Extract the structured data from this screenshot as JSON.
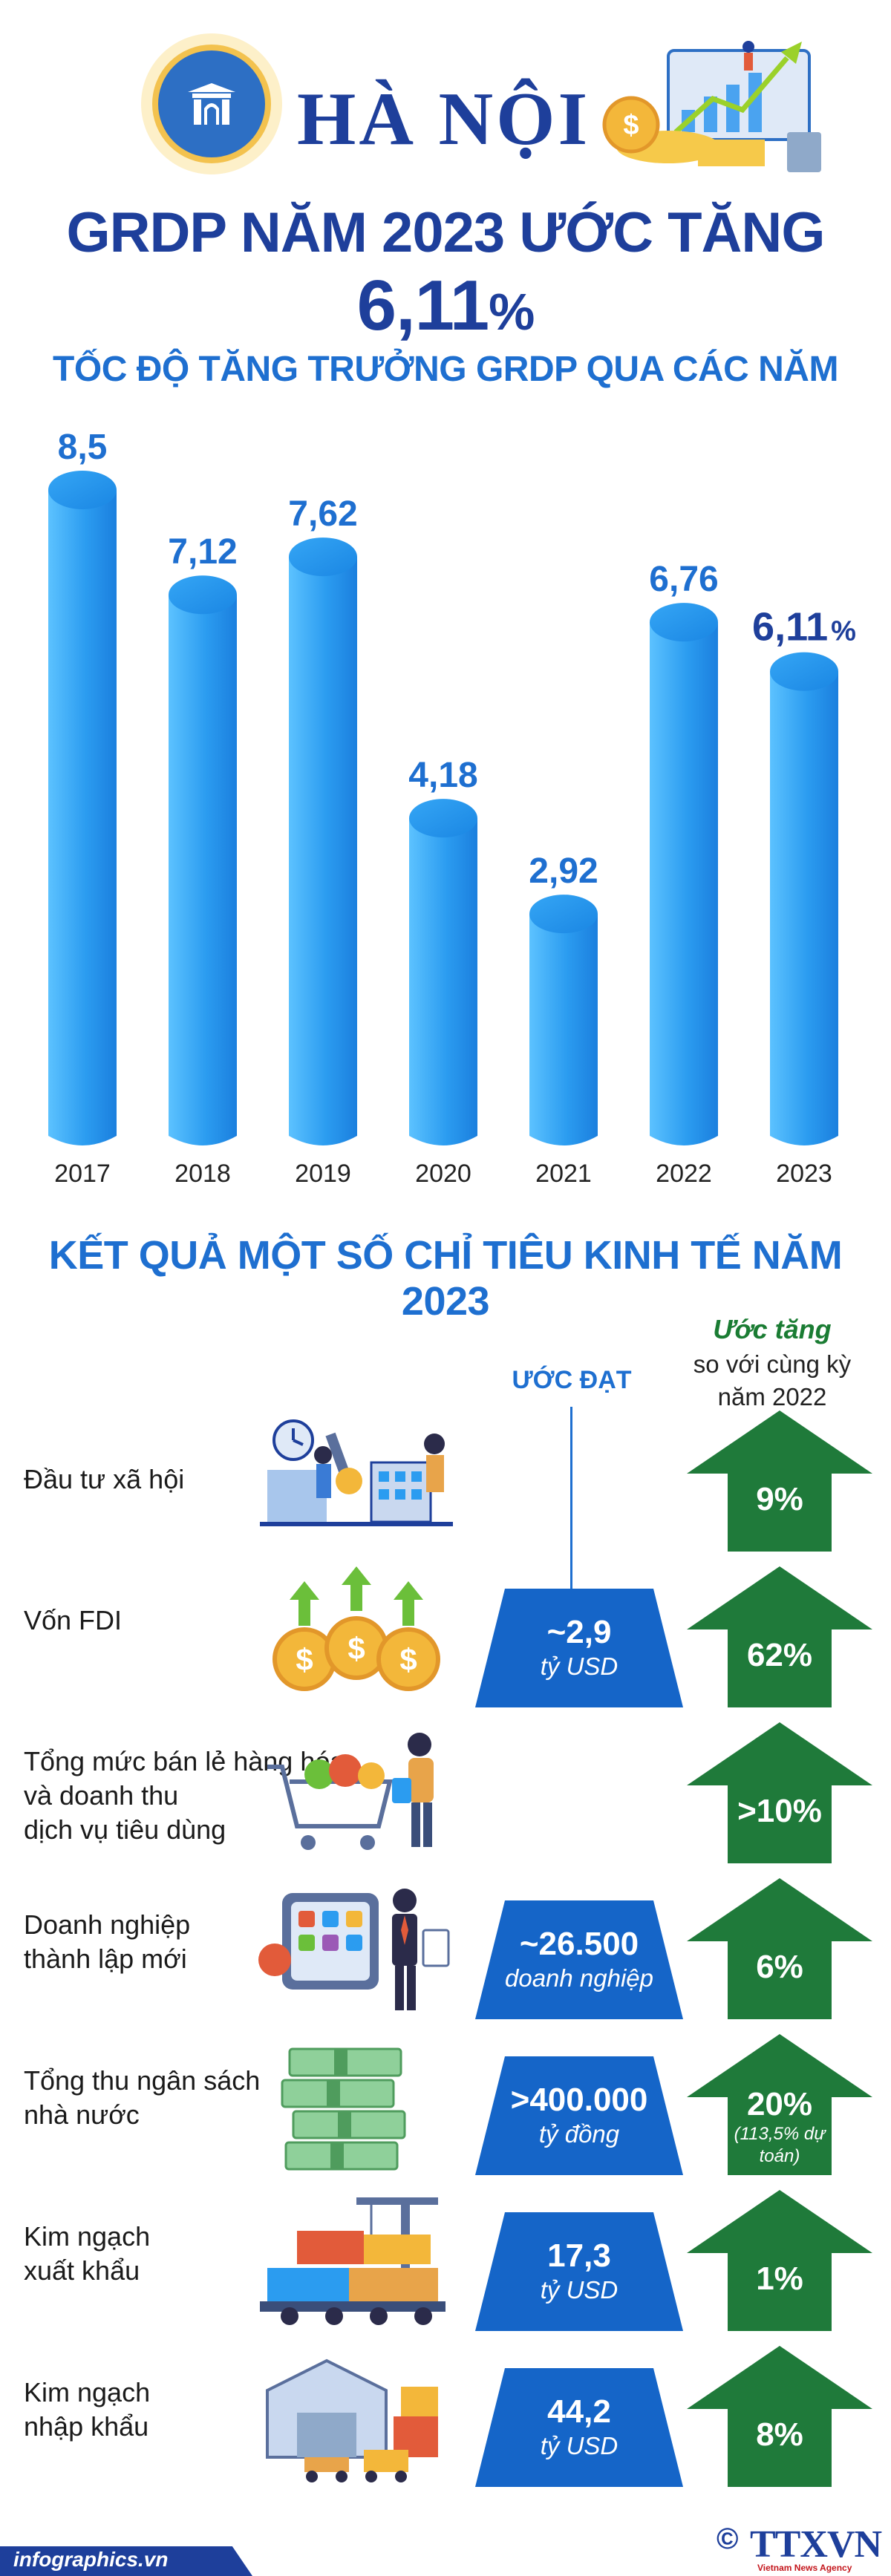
{
  "header": {
    "city": "HÀ NỘI",
    "headline_prefix": "GRDP NĂM 2023 ƯỚC TĂNG ",
    "headline_value": "6,11",
    "headline_unit": "%"
  },
  "chart_title": "TỐC ĐỘ TĂNG TRƯỞNG GRDP QUA CÁC NĂM",
  "chart_data": {
    "type": "bar",
    "title": "TỐC ĐỘ TĂNG TRƯỞNG GRDP QUA CÁC NĂM",
    "categories": [
      "2017",
      "2018",
      "2019",
      "2020",
      "2021",
      "2022",
      "2023"
    ],
    "values": [
      8.5,
      7.12,
      7.62,
      4.18,
      2.92,
      6.76,
      6.11
    ],
    "value_labels": [
      "8,5",
      "7,12",
      "7,62",
      "4,18",
      "2,92",
      "6,76",
      "6,11"
    ],
    "last_unit": "%",
    "xlabel": "",
    "ylabel": "",
    "grid": false,
    "bar_color": "#2b9cf0"
  },
  "section_title": "KẾT QUẢ MỘT SỐ CHỈ TIÊU KINH TẾ NĂM 2023",
  "columns": {
    "estimate": "ƯỚC ĐẠT",
    "growth_title": "Ước tăng",
    "growth_sub1": "so với cùng kỳ",
    "growth_sub2": "năm 2022"
  },
  "rows": [
    {
      "label1": "Đầu tư xã hội",
      "label2": "",
      "label3": "",
      "icon": "office-workers-icon",
      "est_value": "",
      "est_unit": "",
      "growth": "9%",
      "note": ""
    },
    {
      "label1": "Vốn FDI",
      "label2": "",
      "label3": "",
      "icon": "dollar-coins-icon",
      "est_value": "~2,9",
      "est_unit": "tỷ USD",
      "growth": "62%",
      "note": ""
    },
    {
      "label1": "Tổng mức bán lẻ hàng hóa",
      "label2": "và doanh thu",
      "label3": "dịch vụ tiêu dùng",
      "icon": "shopping-cart-icon",
      "est_value": "",
      "est_unit": "",
      "growth": ">10%",
      "note": ""
    },
    {
      "label1": "Doanh nghiệp",
      "label2": "thành lập mới",
      "label3": "",
      "icon": "businessman-icon",
      "est_value": "~26.500",
      "est_unit": "doanh nghiệp",
      "growth": "6%",
      "note": ""
    },
    {
      "label1": "Tổng thu ngân sách",
      "label2": "nhà nước",
      "label3": "",
      "icon": "cash-stack-icon",
      "est_value": ">400.000",
      "est_unit": "tỷ đồng",
      "growth": "20%",
      "note": "(113,5% dự toán)"
    },
    {
      "label1": "Kim ngạch",
      "label2": "xuất khẩu",
      "label3": "",
      "icon": "export-trucks-icon",
      "est_value": "17,3",
      "est_unit": "tỷ USD",
      "growth": "1%",
      "note": ""
    },
    {
      "label1": "Kim ngạch",
      "label2": "nhập khẩu",
      "label3": "",
      "icon": "import-warehouse-icon",
      "est_value": "44,2",
      "est_unit": "tỷ USD",
      "growth": "8%",
      "note": ""
    }
  ],
  "colors": {
    "title_navy": "#1e3f9b",
    "accent_blue": "#1e6fd0",
    "box_blue": "#1565c8",
    "arrow_green": "#1f7a3a"
  },
  "footer": {
    "site": "infographics.vn",
    "copyright": "©",
    "agency": "TTXVN",
    "agency_sub": "Vietnam News Agency"
  }
}
